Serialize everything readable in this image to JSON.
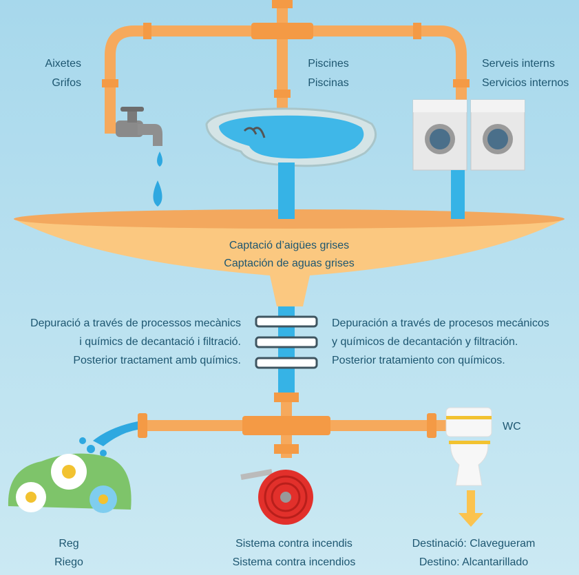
{
  "sources": [
    {
      "ca": "Aixetes",
      "es": "Grifos"
    },
    {
      "ca": "Piscines",
      "es": "Piscinas"
    },
    {
      "ca": "Serveis interns",
      "es": "Servicios internos"
    }
  ],
  "collection": {
    "ca": "Captació d’aigües grises",
    "es": "Captación de aguas grises"
  },
  "treatment": {
    "ca": [
      "Depuració a través de processos mecànics",
      "i químics de decantació i filtració.",
      "Posterior tractament amb químics."
    ],
    "es": [
      "Depuración a través de procesos mecánicos",
      "y químicos de decantación y filtración.",
      "Posterior tratamiento con químicos."
    ]
  },
  "toilet": "WC",
  "uses": [
    {
      "ca": "Reg",
      "es": "Riego"
    },
    {
      "ca": "Sistema contra incendis",
      "es": "Sistema contra incendios"
    },
    {
      "ca": "Destinació: Clavegueram",
      "es": "Destino: Alcantarillado"
    }
  ]
}
